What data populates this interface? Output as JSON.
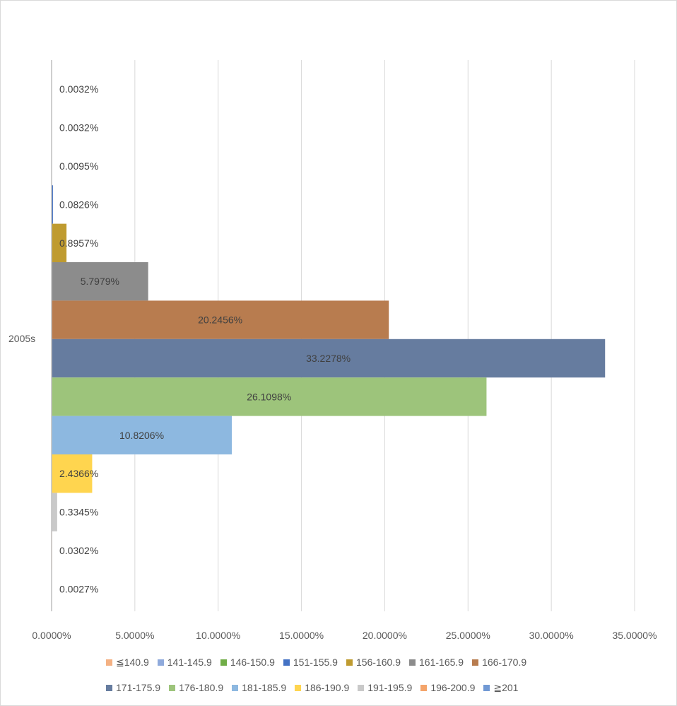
{
  "chart_data": {
    "type": "bar",
    "orientation": "horizontal",
    "categories": [
      "2005s"
    ],
    "xlim": [
      0,
      35
    ],
    "x_ticks": [
      "0.0000%",
      "5.0000%",
      "10.0000%",
      "15.0000%",
      "20.0000%",
      "25.0000%",
      "30.0000%",
      "35.0000%"
    ],
    "grid": true,
    "legend_position": "bottom",
    "series": [
      {
        "name": "≦140.9",
        "value": 0.0032,
        "label": "0.0032%",
        "color": "#f4b183"
      },
      {
        "name": "141-145.9",
        "value": 0.0032,
        "label": "0.0032%",
        "color": "#8faadc"
      },
      {
        "name": "146-150.9",
        "value": 0.0095,
        "label": "0.0095%",
        "color": "#70ad47"
      },
      {
        "name": "151-155.9",
        "value": 0.0826,
        "label": "0.0826%",
        "color": "#4472c4"
      },
      {
        "name": "156-160.9",
        "value": 0.8957,
        "label": "0.8957%",
        "color": "#bf9b30"
      },
      {
        "name": "161-165.9",
        "value": 5.7979,
        "label": "5.7979%",
        "color": "#8c8c8c"
      },
      {
        "name": "166-170.9",
        "value": 20.2456,
        "label": "20.2456%",
        "color": "#b87c4f"
      },
      {
        "name": "171-175.9",
        "value": 33.2278,
        "label": "33.2278%",
        "color": "#667c9f"
      },
      {
        "name": "176-180.9",
        "value": 26.1098,
        "label": "26.1098%",
        "color": "#9dc47b"
      },
      {
        "name": "181-185.9",
        "value": 10.8206,
        "label": "10.8206%",
        "color": "#8db8e0"
      },
      {
        "name": "186-190.9",
        "value": 2.4366,
        "label": "2.4366%",
        "color": "#ffd54f"
      },
      {
        "name": "191-195.9",
        "value": 0.3345,
        "label": "0.3345%",
        "color": "#c9c9c9"
      },
      {
        "name": "196-200.9",
        "value": 0.0302,
        "label": "0.0302%",
        "color": "#f4a46a"
      },
      {
        "name": "≧201",
        "value": 0.0027,
        "label": "0.0027%",
        "color": "#7199d4"
      }
    ]
  }
}
